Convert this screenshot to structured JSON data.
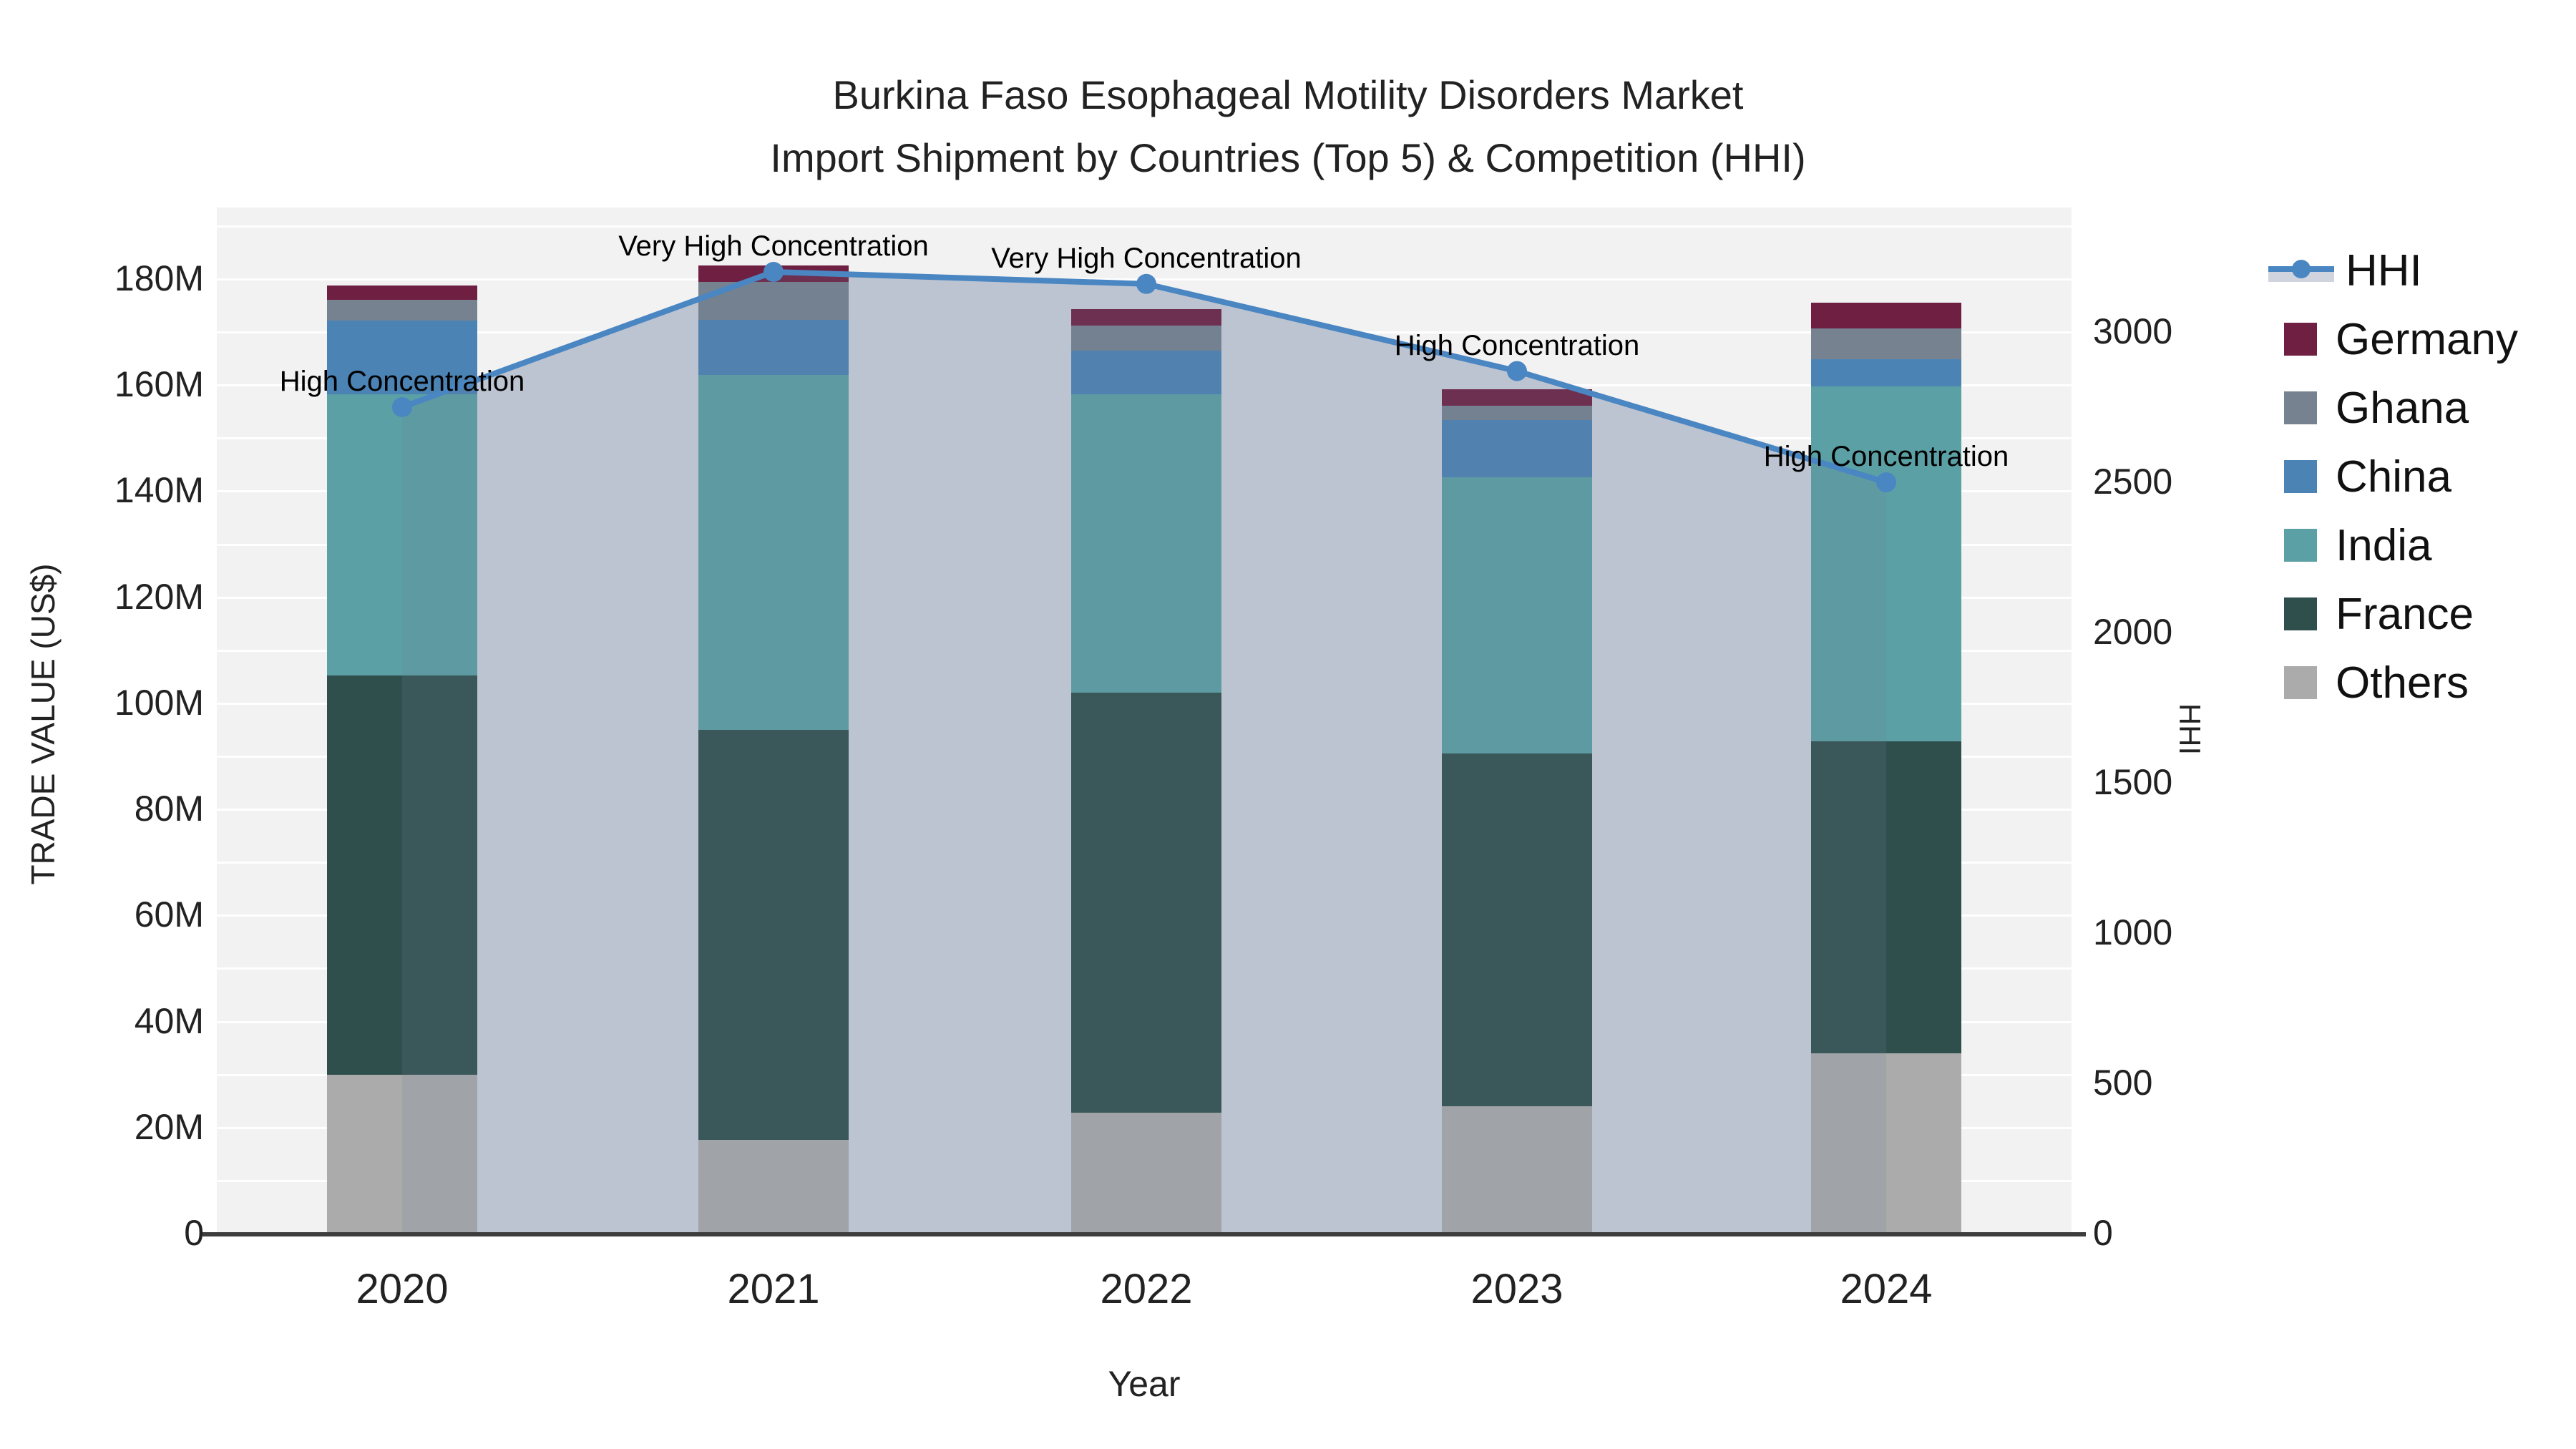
{
  "title": {
    "line1": "Burkina Faso Esophageal Motility Disorders Market",
    "line2": "Import Shipment by Countries (Top 5) & Competition (HHI)"
  },
  "axes": {
    "y_left": {
      "title": "TRADE VALUE (US$)",
      "tick_labels": [
        "0",
        "20M",
        "40M",
        "60M",
        "80M",
        "100M",
        "120M",
        "140M",
        "160M",
        "180M"
      ],
      "tick_values": [
        0,
        20,
        40,
        60,
        80,
        100,
        120,
        140,
        160,
        180
      ]
    },
    "y_right": {
      "title": "HHI",
      "tick_labels": [
        "0",
        "500",
        "1000",
        "1500",
        "2000",
        "2500",
        "3000"
      ],
      "tick_values": [
        0,
        500,
        1000,
        1500,
        2000,
        2500,
        3000
      ]
    },
    "x": {
      "title": "Year",
      "categories": [
        "2020",
        "2021",
        "2022",
        "2023",
        "2024"
      ]
    }
  },
  "legend": {
    "items": [
      {
        "label": "HHI",
        "type": "line",
        "color": "#4a86c2"
      },
      {
        "label": "Germany",
        "type": "square",
        "color": "#6e1f42"
      },
      {
        "label": "Ghana",
        "type": "square",
        "color": "#76828f"
      },
      {
        "label": "China",
        "type": "square",
        "color": "#4b83b5"
      },
      {
        "label": "India",
        "type": "square",
        "color": "#5ba0a5"
      },
      {
        "label": "France",
        "type": "square",
        "color": "#2f4f4d"
      },
      {
        "label": "Others",
        "type": "square",
        "color": "#ababab"
      }
    ]
  },
  "annotations": [
    {
      "year": "2020",
      "text": "High Concentration"
    },
    {
      "year": "2021",
      "text": "Very High Concentration"
    },
    {
      "year": "2022",
      "text": "Very High Concentration"
    },
    {
      "year": "2023",
      "text": "High Concentration"
    },
    {
      "year": "2024",
      "text": "High Concentration"
    }
  ],
  "chart_data": {
    "type": "bar+line",
    "title": "Burkina Faso Esophageal Motility Disorders Market — Import Shipment by Countries (Top 5) & Competition (HHI)",
    "categories": [
      "2020",
      "2021",
      "2022",
      "2023",
      "2024"
    ],
    "bar_unit": "M US$",
    "stack_order_bottom_to_top": [
      "Others",
      "France",
      "India",
      "China",
      "Ghana",
      "Germany"
    ],
    "series": [
      {
        "name": "Others",
        "color": "#ababab",
        "values": [
          30.0,
          17.7,
          22.8,
          24.0,
          34.0
        ]
      },
      {
        "name": "France",
        "color": "#2f4f4d",
        "values": [
          75.3,
          77.3,
          79.2,
          66.5,
          58.8
        ]
      },
      {
        "name": "India",
        "color": "#5ba0a5",
        "values": [
          53.0,
          66.9,
          56.3,
          52.1,
          67.0
        ]
      },
      {
        "name": "China",
        "color": "#4b83b5",
        "values": [
          13.9,
          10.4,
          8.2,
          10.8,
          5.1
        ]
      },
      {
        "name": "Ghana",
        "color": "#76828f",
        "values": [
          3.9,
          7.2,
          4.7,
          2.7,
          5.8
        ]
      },
      {
        "name": "Germany",
        "color": "#6e1f42",
        "values": [
          2.7,
          3.1,
          3.2,
          3.1,
          4.9
        ]
      }
    ],
    "bar_totals": [
      178.8,
      182.6,
      174.4,
      159.2,
      175.6
    ],
    "line_series": {
      "name": "HHI",
      "values": [
        2750,
        3200,
        3160,
        2870,
        2500
      ],
      "color": "#4a86c2",
      "area_fill": "#cfd4de",
      "axis": "right"
    },
    "ylabel_left": "TRADE VALUE (US$)",
    "ylabel_right": "HHI",
    "xlabel": "Year",
    "ylim_left_M": [
      0,
      193
    ],
    "ylim_right": [
      0,
      3415
    ],
    "grid": "horizontal, every 10M, white on light-gray plot background",
    "legend_position": "right"
  }
}
